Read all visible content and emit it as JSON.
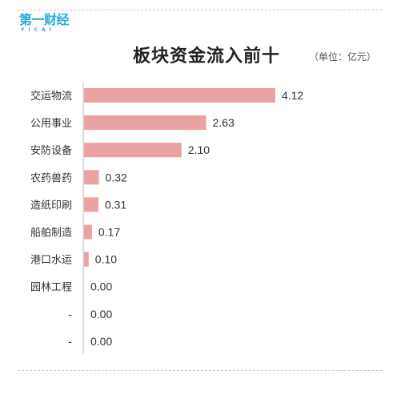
{
  "logo": {
    "main": "第一财经",
    "sub": "YICAI"
  },
  "header": {
    "title": "板块资金流入前十",
    "unit": "（单位：亿元）"
  },
  "colors": {
    "bar": "#e8a2a2",
    "axis": "#bbbbbb",
    "text": "#333333",
    "logo": "#27a9d6"
  },
  "chart_data": {
    "type": "bar",
    "orientation": "horizontal",
    "title": "板块资金流入前十",
    "unit": "（单位：亿元）",
    "categories": [
      "交运物流",
      "公用事业",
      "安防设备",
      "农药兽药",
      "造纸印刷",
      "船舶制造",
      "港口水运",
      "园林工程",
      "-",
      "-"
    ],
    "values": [
      4.12,
      2.63,
      2.1,
      0.32,
      0.31,
      0.17,
      0.1,
      0.0,
      0.0,
      0.0
    ],
    "value_labels": [
      "4.12",
      "2.63",
      "2.10",
      "0.32",
      "0.31",
      "0.17",
      "0.10",
      "0.00",
      "0.00",
      "0.00"
    ],
    "xlim": [
      0,
      5
    ],
    "grid": false,
    "legend": "none"
  }
}
